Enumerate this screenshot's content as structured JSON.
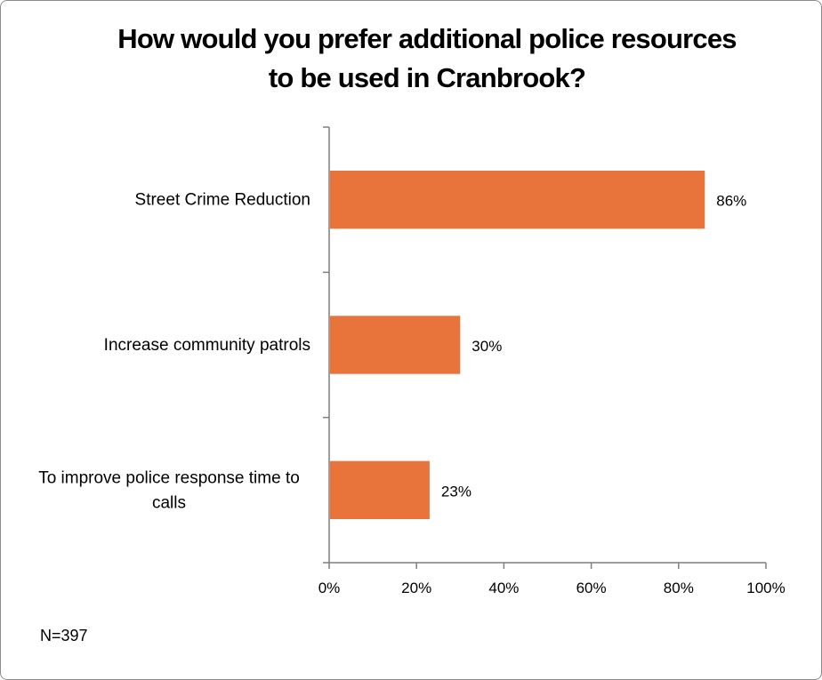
{
  "chart_data": {
    "type": "bar",
    "orientation": "horizontal",
    "title": "How would you prefer additional police resources to be used in Cranbrook?",
    "categories": [
      [
        "Street Crime Reduction"
      ],
      [
        "Increase community patrols"
      ],
      [
        "To improve police response time to",
        "calls"
      ]
    ],
    "values": [
      86,
      30,
      23
    ],
    "data_labels": [
      "86%",
      "30%",
      "23%"
    ],
    "x_ticks": [
      "0%",
      "20%",
      "40%",
      "60%",
      "80%",
      "100%"
    ],
    "xlim": [
      0,
      100
    ],
    "xlabel": "",
    "ylabel": "",
    "bar_color": "#E8743B",
    "footnote": "N=397"
  }
}
